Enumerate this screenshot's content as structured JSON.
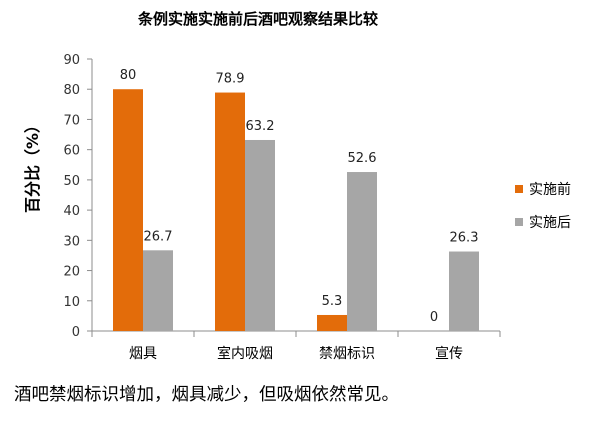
{
  "chart_data": {
    "type": "bar",
    "title": "条例实施实施前后酒吧观察结果比较",
    "ylabel": "百分比（%）",
    "xlabel": "",
    "categories": [
      "烟具",
      "室内吸烟",
      "禁烟标识",
      "宣传"
    ],
    "series": [
      {
        "name": "实施前",
        "values": [
          80,
          78.9,
          5.3,
          0
        ],
        "color": "#E36C0A"
      },
      {
        "name": "实施后",
        "values": [
          26.7,
          63.2,
          52.6,
          26.3
        ],
        "color": "#A6A6A6"
      }
    ],
    "data_labels": [
      [
        "80",
        "78.9",
        "5.3",
        "0"
      ],
      [
        "26.7",
        "63.2",
        "52.6",
        "26.3"
      ]
    ],
    "ylim": [
      0,
      90
    ],
    "yticks": [
      0,
      10,
      20,
      30,
      40,
      50,
      60,
      70,
      80,
      90
    ],
    "grid": false,
    "legend_position": "right"
  },
  "caption": "酒吧禁烟标识增加，烟具减少，但吸烟依然常见。"
}
